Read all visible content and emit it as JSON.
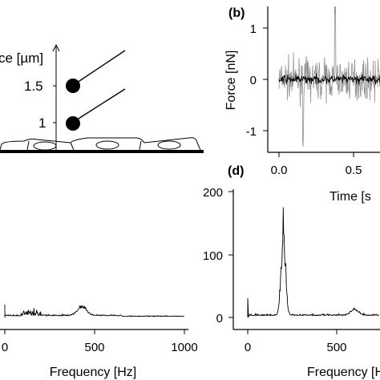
{
  "schematic": {
    "axis_label": "ce [µm]",
    "ticks": [
      "1.5",
      "1"
    ]
  },
  "chart_data": [
    {
      "panel": "(b)",
      "type": "line",
      "xlabel": "Time [s",
      "ylabel": "Force [nN]",
      "xlim": [
        -0.1,
        0.75
      ],
      "ylim": [
        -1.35,
        1.5
      ],
      "x_ticks": [
        "0.0",
        "0.5"
      ],
      "y_ticks": [
        "1",
        "0",
        "-1"
      ],
      "series": [
        {
          "color": "#909090",
          "amplitude_nN": 0.45,
          "peak_nN": [
            1.32,
            -1.05
          ]
        },
        {
          "color": "#000000",
          "amplitude_nN": 0.1
        }
      ]
    },
    {
      "panel": "",
      "type": "line",
      "xlabel": "Frequency [Hz]",
      "xlim": [
        0,
        1000
      ],
      "x_ticks": [
        "0",
        "500",
        "1000"
      ],
      "peaks_hz": [
        130,
        430
      ],
      "series": [
        {
          "color": "#000000"
        }
      ]
    },
    {
      "panel": "(d)",
      "type": "line",
      "xlabel": "Frequency [H",
      "xlim": [
        0,
        800
      ],
      "ylim": [
        0,
        200
      ],
      "x_ticks": [
        "0",
        "500"
      ],
      "y_ticks": [
        "200",
        "100",
        "0"
      ],
      "peak": {
        "x": 200,
        "y": 175
      },
      "series": [
        {
          "color": "#000000"
        }
      ]
    }
  ]
}
